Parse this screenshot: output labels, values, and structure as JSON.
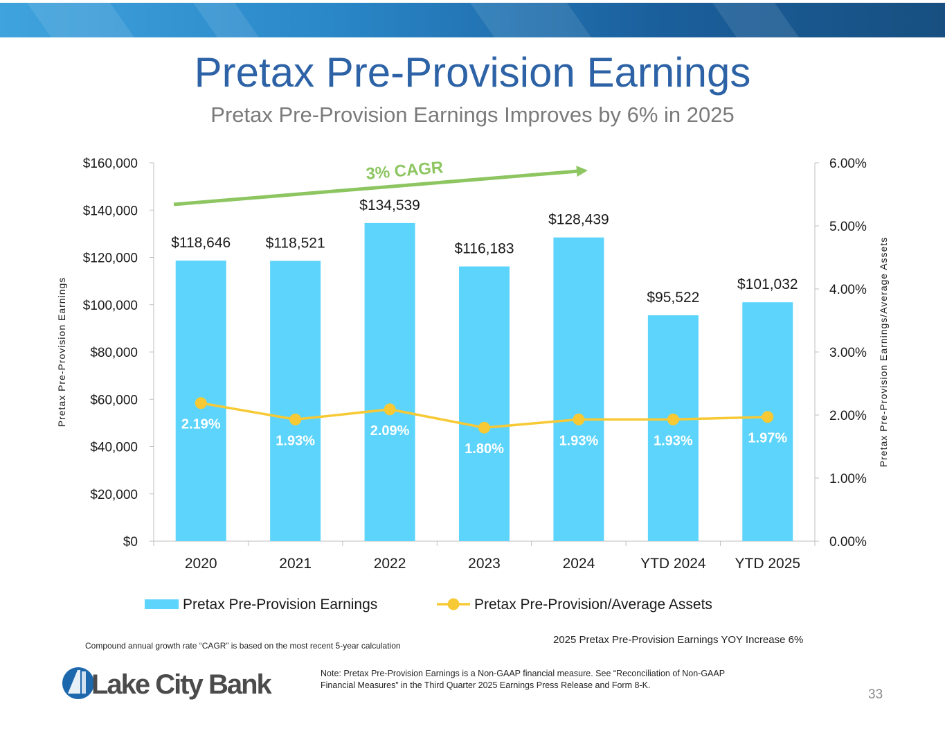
{
  "slide": {
    "title": "Pretax Pre-Provision Earnings",
    "subtitle": "Pretax Pre-Provision Earnings Improves by 6% in 2025",
    "cagr_note": "Compound annual growth rate “CAGR” is based on the most recent 5-year calculation",
    "yoy_note": "2025 Pretax Pre-Provision Earnings YOY Increase 6%",
    "gaap_note": "Note: Pretax Pre-Provision Earnings is a Non-GAAP financial measure. See “Reconciliation of Non-GAAP Financial Measures” in the Third Quarter 2025 Earnings Press Release and Form 8-K.",
    "page_number": "33",
    "logo_text": "Lake City Bank"
  },
  "colors": {
    "bar": "#5dd4fb",
    "line": "#f7c934",
    "cagr": "#8dc661",
    "title": "#2d63a6",
    "banner": "#1a5f9c"
  },
  "chart_data": {
    "type": "bar",
    "categories": [
      "2020",
      "2021",
      "2022",
      "2023",
      "2024",
      "YTD 2024",
      "YTD 2025"
    ],
    "series": [
      {
        "name": "Pretax Pre-Provision Earnings",
        "type": "bar",
        "axis": "left",
        "values": [
          118646,
          118521,
          134539,
          116183,
          128439,
          95522,
          101032
        ],
        "labels": [
          "$118,646",
          "$118,521",
          "$134,539",
          "$116,183",
          "$128,439",
          "$95,522",
          "$101,032"
        ]
      },
      {
        "name": "Pretax Pre-Provision/Average Assets",
        "type": "line",
        "axis": "right",
        "values": [
          2.19,
          1.93,
          2.09,
          1.8,
          1.93,
          1.93,
          1.97
        ],
        "labels": [
          "2.19%",
          "1.93%",
          "2.09%",
          "1.80%",
          "1.93%",
          "1.93%",
          "1.97%"
        ]
      }
    ],
    "ylabel": "Pretax Pre-Provision Earnings",
    "y2label": "Pretax Pre-Provision Earnings/Average Assets",
    "ylim": [
      0,
      160000
    ],
    "y2lim": [
      0,
      6
    ],
    "yticks": [
      "$0",
      "$20,000",
      "$40,000",
      "$60,000",
      "$80,000",
      "$100,000",
      "$120,000",
      "$140,000",
      "$160,000"
    ],
    "y2ticks": [
      "0.00%",
      "1.00%",
      "2.00%",
      "3.00%",
      "4.00%",
      "5.00%",
      "6.00%"
    ],
    "legend": [
      "Pretax Pre-Provision Earnings",
      "Pretax Pre-Provision/Average Assets"
    ],
    "legend_position": "bottom",
    "annotation": "3% CAGR"
  }
}
